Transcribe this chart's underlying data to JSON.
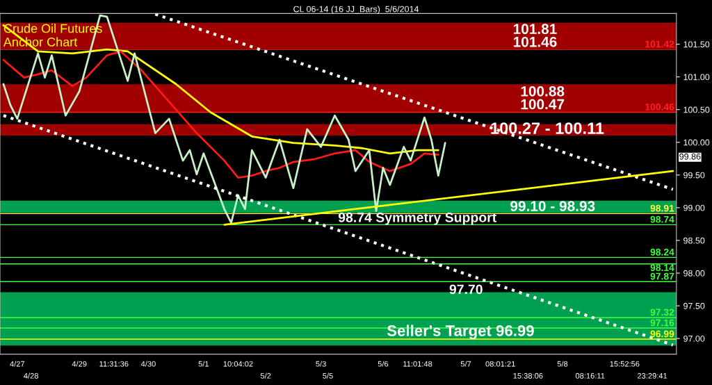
{
  "chart_data": {
    "type": "line",
    "title": "Crude Oil Futures\nAnchor Chart",
    "subtitle": "CL 06-14 (16 JJ_Bars)  5/6/2014",
    "categories": [
      null,
      null,
      "4/27",
      null,
      "4/28",
      null,
      null,
      null,
      null,
      null,
      null,
      "4/29",
      null,
      null,
      null,
      null,
      "11:31:36",
      null,
      null,
      null,
      null,
      "4/30",
      null,
      null,
      null,
      null,
      null,
      null,
      null,
      "5/1",
      null,
      null,
      null,
      null,
      "10:04:02",
      null,
      null,
      null,
      "5/2",
      null,
      null,
      null,
      null,
      null,
      null,
      null,
      "5/3",
      "5/5",
      null,
      null,
      null,
      null,
      null,
      null,
      null,
      "5/6",
      null,
      null,
      null,
      null,
      "11:01:48",
      null,
      null,
      null,
      null,
      null,
      null,
      "5/7",
      null,
      null,
      null,
      null,
      "08:01:21",
      null,
      null,
      null,
      "15:38:06",
      null,
      null,
      null,
      null,
      "5/8",
      null,
      null,
      null,
      "08:16:11",
      null,
      null,
      null,
      null,
      "15:52:56",
      null,
      null,
      null,
      "23:29:41",
      null,
      null,
      null
    ],
    "ylim": [
      96.76,
      101.97
    ],
    "yticks": [
      {
        "value": 97.0,
        "label": "97.00"
      },
      {
        "value": 97.5,
        "label": "97.50"
      },
      {
        "value": 98.0,
        "label": "98.00"
      },
      {
        "value": 98.5,
        "label": "98.50"
      },
      {
        "value": 99.0,
        "label": "99.00"
      },
      {
        "value": 99.5,
        "label": "99.50"
      },
      {
        "value": 100.0,
        "label": "100.00"
      },
      {
        "value": 100.5,
        "label": "100.50"
      },
      {
        "value": 101.0,
        "label": "101.00"
      },
      {
        "value": 101.5,
        "label": "101.50"
      }
    ],
    "grid": false,
    "legend": false,
    "series": [
      {
        "color": "#ffff00",
        "line_style": "solid",
        "values": [
          101.79,
          null,
          null,
          null,
          null,
          101.39,
          null,
          null,
          null,
          null,
          101.36,
          null,
          null,
          null,
          null,
          101.42,
          null,
          null,
          101.39,
          null,
          null,
          null,
          null,
          null,
          null,
          100.89,
          null,
          null,
          null,
          null,
          100.46,
          null,
          null,
          null,
          null,
          null,
          100.09,
          null,
          null,
          null,
          null,
          null,
          99.99,
          null,
          null,
          null,
          null,
          null,
          99.95,
          null,
          null,
          null,
          99.91,
          null,
          null,
          null,
          99.83,
          null,
          null,
          null,
          99.88,
          null,
          null,
          99.88,
          null,
          null,
          null,
          null,
          null,
          null,
          null,
          null,
          null,
          null,
          null,
          null,
          null,
          null,
          null,
          null,
          null,
          null,
          null,
          null,
          null,
          null,
          null,
          null,
          null,
          null,
          null,
          null,
          null,
          null,
          null,
          null,
          null,
          null
        ]
      },
      {
        "color": "#ff1a1a",
        "line_style": "solid",
        "values": [
          101.26,
          null,
          null,
          100.99,
          null,
          101.04,
          null,
          101.1,
          null,
          null,
          100.86,
          null,
          100.99,
          null,
          null,
          101.33,
          null,
          101.39,
          null,
          null,
          101.1,
          null,
          null,
          null,
          100.62,
          null,
          null,
          null,
          100.14,
          null,
          null,
          null,
          99.72,
          null,
          99.46,
          null,
          99.49,
          null,
          99.56,
          null,
          99.61,
          null,
          99.7,
          null,
          null,
          99.74,
          null,
          null,
          99.83,
          null,
          null,
          99.88,
          null,
          99.7,
          null,
          null,
          99.56,
          null,
          null,
          99.67,
          null,
          99.83,
          null,
          99.81,
          null,
          null,
          null,
          null,
          null,
          null,
          null,
          null,
          null,
          null,
          null,
          null,
          null,
          null,
          null,
          null,
          null,
          null,
          null,
          null,
          null,
          null,
          null,
          null,
          null,
          null,
          null,
          null,
          null,
          null,
          null,
          null,
          null,
          null
        ]
      },
      {
        "color": "#c8f0c8",
        "line_style": "solid",
        "values": [
          100.89,
          100.57,
          100.36,
          null,
          null,
          101.36,
          100.99,
          101.33,
          null,
          100.41,
          null,
          100.78,
          null,
          null,
          101.94,
          101.92,
          null,
          null,
          100.94,
          101.36,
          null,
          null,
          100.14,
          null,
          100.36,
          null,
          99.72,
          99.88,
          99.51,
          99.83,
          null,
          null,
          98.98,
          98.77,
          99.19,
          98.98,
          99.88,
          null,
          99.46,
          null,
          100.04,
          null,
          99.3,
          null,
          100.2,
          null,
          99.93,
          null,
          100.41,
          null,
          100.04,
          99.56,
          null,
          99.88,
          98.95,
          99.61,
          99.35,
          null,
          99.93,
          99.72,
          null,
          100.38,
          100.04,
          99.49,
          99.99,
          null,
          null,
          null,
          null,
          null,
          null,
          null,
          null,
          null,
          null,
          null,
          null,
          null,
          null,
          null,
          null,
          null,
          null,
          null,
          null,
          null,
          null,
          null,
          null,
          null,
          null,
          null,
          null,
          null,
          null,
          null,
          null,
          null
        ]
      },
      {
        "color": "#ffffff",
        "line_style": "dotted",
        "values": [
          null,
          null,
          null,
          null,
          null,
          null,
          null,
          null,
          null,
          null,
          null,
          null,
          null,
          null,
          null,
          null,
          null,
          null,
          null,
          null,
          null,
          null,
          101.96,
          null,
          null,
          null,
          null,
          null,
          null,
          null,
          null,
          null,
          null,
          null,
          null,
          null,
          null,
          null,
          null,
          null,
          null,
          null,
          null,
          null,
          null,
          null,
          null,
          null,
          null,
          null,
          null,
          null,
          null,
          null,
          null,
          null,
          null,
          null,
          null,
          null,
          null,
          null,
          null,
          null,
          null,
          null,
          null,
          null,
          null,
          null,
          null,
          null,
          null,
          null,
          null,
          null,
          null,
          null,
          null,
          null,
          null,
          null,
          null,
          null,
          null,
          null,
          null,
          null,
          null,
          null,
          null,
          null,
          null,
          null,
          null,
          null,
          null,
          99.28
        ]
      },
      {
        "color": "#ffffff",
        "line_style": "dotted",
        "values": [
          100.41,
          null,
          null,
          null,
          null,
          null,
          null,
          null,
          null,
          null,
          null,
          null,
          null,
          null,
          null,
          null,
          null,
          null,
          null,
          null,
          null,
          null,
          null,
          null,
          null,
          null,
          null,
          null,
          null,
          null,
          null,
          null,
          null,
          null,
          null,
          null,
          null,
          null,
          null,
          null,
          null,
          null,
          null,
          null,
          null,
          null,
          null,
          null,
          null,
          null,
          null,
          null,
          null,
          null,
          null,
          null,
          null,
          null,
          null,
          null,
          null,
          null,
          null,
          null,
          null,
          null,
          null,
          null,
          null,
          null,
          null,
          null,
          null,
          null,
          null,
          null,
          null,
          null,
          null,
          null,
          null,
          null,
          null,
          null,
          null,
          null,
          null,
          null,
          null,
          null,
          null,
          null,
          null,
          null,
          null,
          null,
          null,
          96.9
        ]
      },
      {
        "color": "#ffff00",
        "line_style": "solid",
        "values": [
          null,
          null,
          null,
          null,
          null,
          null,
          null,
          null,
          null,
          null,
          null,
          null,
          null,
          null,
          null,
          null,
          null,
          null,
          null,
          null,
          null,
          null,
          null,
          null,
          null,
          null,
          null,
          null,
          null,
          null,
          null,
          null,
          98.74,
          null,
          null,
          null,
          null,
          null,
          null,
          null,
          null,
          null,
          null,
          null,
          null,
          null,
          null,
          null,
          null,
          null,
          null,
          null,
          null,
          null,
          null,
          null,
          null,
          null,
          null,
          null,
          null,
          null,
          null,
          null,
          null,
          null,
          null,
          null,
          null,
          null,
          null,
          null,
          null,
          null,
          null,
          null,
          null,
          null,
          null,
          null,
          null,
          null,
          null,
          null,
          null,
          null,
          null,
          null,
          null,
          null,
          null,
          null,
          null,
          null,
          null,
          null,
          null,
          99.56
        ]
      }
    ],
    "bands": [
      {
        "axis": "y",
        "from": 101.44,
        "to": 101.82,
        "color": "#a00000"
      },
      {
        "axis": "y",
        "from": 100.46,
        "to": 100.88,
        "color": "#a00000"
      },
      {
        "axis": "y",
        "from": 100.11,
        "to": 100.27,
        "color": "#a00000"
      },
      {
        "axis": "y",
        "from": 98.93,
        "to": 99.1,
        "color": "#00a050"
      },
      {
        "axis": "y",
        "from": 96.9,
        "to": 97.7,
        "color": "#00a050"
      }
    ],
    "ref_lines": [
      {
        "axis": "y",
        "value": 101.42,
        "label": "101.42",
        "color": "#ff2020"
      },
      {
        "axis": "y",
        "value": 100.46,
        "label": "100.46",
        "color": "#ff2020"
      },
      {
        "axis": "y",
        "value": 98.91,
        "label": "98.91",
        "color": "#ffff40"
      },
      {
        "axis": "y",
        "value": 98.74,
        "label": "98.74",
        "color": "#40ff40"
      },
      {
        "axis": "y",
        "value": 98.24,
        "label": "98.24",
        "color": "#40ff40"
      },
      {
        "axis": "y",
        "value": 98.14,
        "label": "98.14",
        "color": "#40ff40"
      },
      {
        "axis": "y",
        "value": 97.87,
        "label": "97.87",
        "color": "#40ff40"
      },
      {
        "axis": "y",
        "value": 97.32,
        "label": "97.32",
        "color": "#40ff40"
      },
      {
        "axis": "y",
        "value": 97.16,
        "label": "97.16",
        "color": "#40ff40"
      },
      {
        "axis": "y",
        "value": 96.99,
        "label": "96.99",
        "color": "#ffff00"
      }
    ],
    "annotations": [
      "101.81",
      "101.46",
      "100.88",
      "100.47",
      "100.27 - 100.11",
      "99.10 - 98.93",
      "98.74 Symmetry Support",
      "97.70",
      "Seller's Target 96.99",
      "99.86"
    ]
  }
}
